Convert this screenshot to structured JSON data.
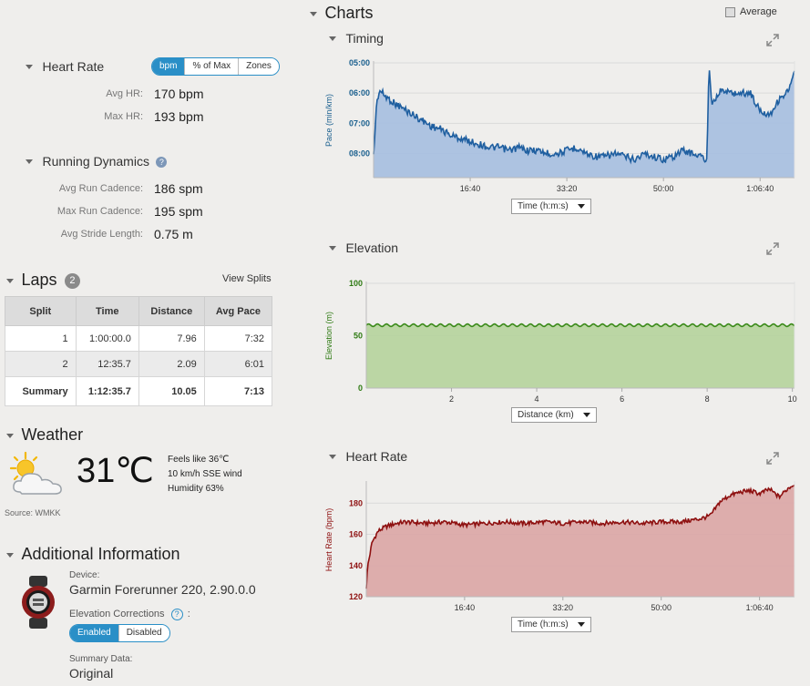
{
  "heart_rate": {
    "title": "Heart Rate",
    "toggle": [
      "bpm",
      "% of Max",
      "Zones"
    ],
    "avg_label": "Avg HR:",
    "avg_value": "170 bpm",
    "max_label": "Max HR:",
    "max_value": "193 bpm"
  },
  "running_dynamics": {
    "title": "Running Dynamics",
    "rows": [
      {
        "label": "Avg Run Cadence:",
        "value": "186 spm"
      },
      {
        "label": "Max Run Cadence:",
        "value": "195 spm"
      },
      {
        "label": "Avg Stride Length:",
        "value": "0.75 m"
      }
    ]
  },
  "laps": {
    "title": "Laps",
    "count": "2",
    "view_splits": "View Splits",
    "headers": [
      "Split",
      "Time",
      "Distance",
      "Avg Pace"
    ],
    "rows": [
      [
        "1",
        "1:00:00.0",
        "7.96",
        "7:32"
      ],
      [
        "2",
        "12:35.7",
        "2.09",
        "6:01"
      ]
    ],
    "summary": [
      "Summary",
      "1:12:35.7",
      "10.05",
      "7:13"
    ]
  },
  "weather": {
    "title": "Weather",
    "temperature": "31℃",
    "feels_like": "Feels like 36℃",
    "wind": "10 km/h SSE wind",
    "humidity": "Humidity 63%",
    "source": "Source: WMKK"
  },
  "additional": {
    "title": "Additional Information",
    "device_label": "Device:",
    "device_value": "Garmin Forerunner 220, 2.90.0.0",
    "elev_corr_label": "Elevation Corrections",
    "elev_corr_options": [
      "Enabled",
      "Disabled"
    ],
    "summary_label": "Summary Data:",
    "summary_value": "Original"
  },
  "charts": {
    "title": "Charts",
    "average_label": "Average",
    "average_checked": false
  },
  "colors": {
    "timing_line": "#1f5fa0",
    "timing_fill": "#a9c0e0",
    "elev_line": "#3b8a1a",
    "elev_fill": "#b7d4a0",
    "hr_line": "#8e1010",
    "hr_fill": "#dba9a9",
    "toggle_accent": "#2a8fc7"
  },
  "chart_data": [
    {
      "type": "area",
      "title": "Timing",
      "ylabel": "Pace (min/km)",
      "xlabel": "",
      "x_selector": "Time (h:m:s)",
      "x_tick_labels": [
        "16:40",
        "33:20",
        "50:00",
        "1:06:40"
      ],
      "x_tick_values_s": [
        1000,
        2000,
        3000,
        4000
      ],
      "y_tick_labels": [
        "05:00",
        "06:00",
        "07:00",
        "08:00"
      ],
      "ylim_min_per_km": [
        8.8,
        5.0
      ],
      "y_inverted": true,
      "x_range_s": [
        0,
        4356
      ],
      "series": [
        {
          "x": [
            0,
            30,
            60,
            120,
            200,
            300,
            400,
            500,
            600,
            700,
            800,
            900,
            1000,
            1100,
            1200,
            1300,
            1400,
            1500,
            1600,
            1700,
            1800,
            1900,
            2000,
            2100,
            2200,
            2300,
            2400,
            2500,
            2600,
            2700,
            2800,
            2900,
            3000,
            3100,
            3200,
            3300,
            3400,
            3450,
            3470,
            3500,
            3600,
            3700,
            3800,
            3900,
            4000,
            4100,
            4200,
            4300,
            4356
          ],
          "y": [
            8.1,
            6.4,
            5.9,
            6.1,
            6.3,
            6.5,
            6.7,
            6.9,
            7.1,
            7.2,
            7.4,
            7.5,
            7.6,
            7.7,
            7.8,
            7.8,
            7.9,
            7.8,
            7.9,
            7.9,
            8.0,
            8.0,
            7.9,
            7.8,
            8.0,
            8.1,
            8.1,
            8.0,
            8.1,
            8.2,
            8.0,
            8.1,
            8.2,
            8.1,
            7.9,
            8.0,
            8.1,
            8.3,
            5.0,
            6.3,
            5.9,
            6.0,
            6.0,
            6.0,
            6.6,
            6.7,
            6.2,
            5.9,
            5.3
          ]
        }
      ]
    },
    {
      "type": "area",
      "title": "Elevation",
      "ylabel": "Elevation (m)",
      "xlabel": "",
      "x_selector": "Distance (km)",
      "x_ticks": [
        2,
        4,
        6,
        8,
        10
      ],
      "y_ticks": [
        0,
        50,
        100
      ],
      "xlim": [
        0,
        10.05
      ],
      "ylim": [
        0,
        100
      ],
      "series": [
        {
          "x": [
            0,
            10.05
          ],
          "y": [
            60,
            60
          ]
        }
      ]
    },
    {
      "type": "area",
      "title": "Heart Rate",
      "ylabel": "Heart Rate (bpm)",
      "xlabel": "",
      "x_selector": "Time (h:m:s)",
      "x_tick_labels": [
        "16:40",
        "33:20",
        "50:00",
        "1:06:40"
      ],
      "x_tick_values_s": [
        1000,
        2000,
        3000,
        4000
      ],
      "y_ticks": [
        120,
        140,
        160,
        180
      ],
      "ylim": [
        120,
        193
      ],
      "x_range_s": [
        0,
        4356
      ],
      "series": [
        {
          "x": [
            0,
            15,
            60,
            120,
            200,
            300,
            400,
            600,
            800,
            1000,
            1200,
            1400,
            1600,
            1800,
            2000,
            2200,
            2400,
            2600,
            2800,
            3000,
            3200,
            3400,
            3500,
            3600,
            3700,
            3800,
            3900,
            4000,
            4100,
            4200,
            4300,
            4356
          ],
          "y": [
            126,
            140,
            155,
            162,
            165,
            167,
            168,
            167,
            168,
            166,
            167,
            168,
            167,
            168,
            167,
            168,
            167,
            168,
            167,
            168,
            168,
            170,
            172,
            181,
            185,
            187,
            188,
            186,
            189,
            184,
            190,
            192
          ]
        }
      ]
    }
  ]
}
